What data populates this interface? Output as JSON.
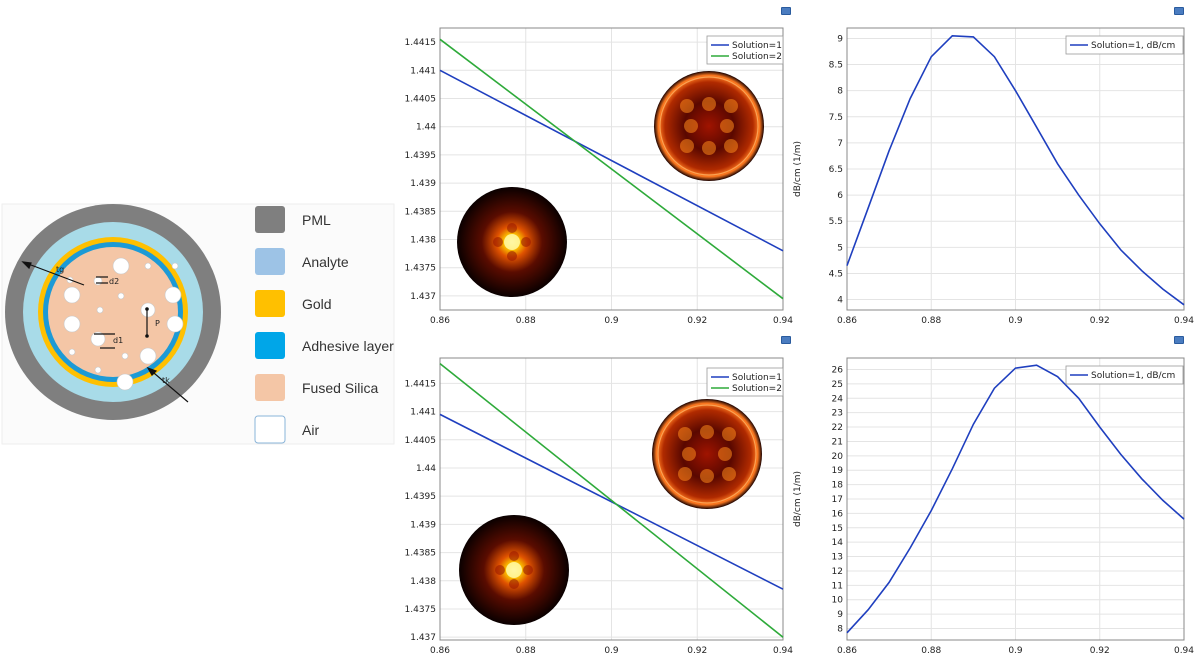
{
  "fiber_legend": [
    {
      "label": "PML",
      "color": "#7f7f7f"
    },
    {
      "label": "Analyte",
      "color": "#9dc3e6"
    },
    {
      "label": "Gold",
      "color": "#ffc000"
    },
    {
      "label": "Adhesive layer",
      "color": "#00a6e8"
    },
    {
      "label": "Fused Silica",
      "color": "#f4c6a6"
    },
    {
      "label": "Air",
      "color": "#ffffff"
    }
  ],
  "fiber_annotations": {
    "tg": "tg",
    "tk": "tk",
    "d1": "d1",
    "d2": "d2",
    "p": "P"
  },
  "chart_data": [
    {
      "type": "line",
      "x": [
        0.86,
        0.94
      ],
      "xlim": [
        0.86,
        0.94
      ],
      "ylim": [
        1.43675,
        1.44175
      ],
      "xticks": [
        "0.86",
        "0.88",
        "0.9",
        "0.92",
        "0.94"
      ],
      "yticks": [
        "1.437",
        "1.4375",
        "1.438",
        "1.4385",
        "1.439",
        "1.4395",
        "1.44",
        "1.4405",
        "1.441",
        "1.4415"
      ],
      "ylabel": "",
      "series": [
        {
          "name": "Solution=1",
          "color": "#1f3fbf",
          "values": [
            1.441,
            1.4378
          ]
        },
        {
          "name": "Solution=2",
          "color": "#2eaa3a",
          "values": [
            1.44155,
            1.43695
          ]
        }
      ]
    },
    {
      "type": "line",
      "x": [
        0.86,
        0.865,
        0.87,
        0.875,
        0.88,
        0.885,
        0.89,
        0.895,
        0.9,
        0.905,
        0.91,
        0.915,
        0.92,
        0.925,
        0.93,
        0.935,
        0.94
      ],
      "xlim": [
        0.86,
        0.94
      ],
      "ylim": [
        3.8,
        9.2
      ],
      "xticks": [
        "0.86",
        "0.88",
        "0.9",
        "0.92",
        "0.94"
      ],
      "yticks": [
        "4",
        "4.5",
        "5",
        "5.5",
        "6",
        "6.5",
        "7",
        "7.5",
        "8",
        "8.5",
        "9"
      ],
      "ylabel": "dB/cm (1/m)",
      "series": [
        {
          "name": "Solution=1, dB/cm",
          "color": "#1f3fbf",
          "values": [
            4.65,
            5.75,
            6.85,
            7.85,
            8.65,
            9.05,
            9.03,
            8.65,
            8.0,
            7.3,
            6.6,
            6.0,
            5.45,
            4.95,
            4.55,
            4.2,
            3.9
          ]
        }
      ]
    },
    {
      "type": "line",
      "x": [
        0.86,
        0.94
      ],
      "xlim": [
        0.86,
        0.94
      ],
      "ylim": [
        1.43695,
        1.44195
      ],
      "xticks": [
        "0.86",
        "0.88",
        "0.9",
        "0.92",
        "0.94"
      ],
      "yticks": [
        "1.437",
        "1.4375",
        "1.438",
        "1.4385",
        "1.439",
        "1.4395",
        "1.44",
        "1.4405",
        "1.441",
        "1.4415"
      ],
      "ylabel": "",
      "series": [
        {
          "name": "Solution=1",
          "color": "#1f3fbf",
          "values": [
            1.44095,
            1.43785
          ]
        },
        {
          "name": "Solution=2",
          "color": "#2eaa3a",
          "values": [
            1.44185,
            1.437
          ]
        }
      ]
    },
    {
      "type": "line",
      "x": [
        0.86,
        0.865,
        0.87,
        0.875,
        0.88,
        0.885,
        0.89,
        0.895,
        0.9,
        0.905,
        0.91,
        0.915,
        0.92,
        0.925,
        0.93,
        0.935,
        0.94
      ],
      "xlim": [
        0.86,
        0.94
      ],
      "ylim": [
        7.2,
        26.8
      ],
      "xticks": [
        "0.86",
        "0.88",
        "0.9",
        "0.92",
        "0.94"
      ],
      "yticks": [
        "8",
        "9",
        "10",
        "11",
        "12",
        "13",
        "14",
        "15",
        "16",
        "17",
        "18",
        "19",
        "20",
        "21",
        "22",
        "23",
        "24",
        "25",
        "26"
      ],
      "ylabel": "dB/cm (1/m)",
      "series": [
        {
          "name": "Solution=1, dB/cm",
          "color": "#1f3fbf",
          "values": [
            7.7,
            9.3,
            11.2,
            13.6,
            16.2,
            19.1,
            22.2,
            24.7,
            26.1,
            26.3,
            25.5,
            24.0,
            22.0,
            20.1,
            18.4,
            16.9,
            15.6
          ]
        }
      ]
    }
  ]
}
